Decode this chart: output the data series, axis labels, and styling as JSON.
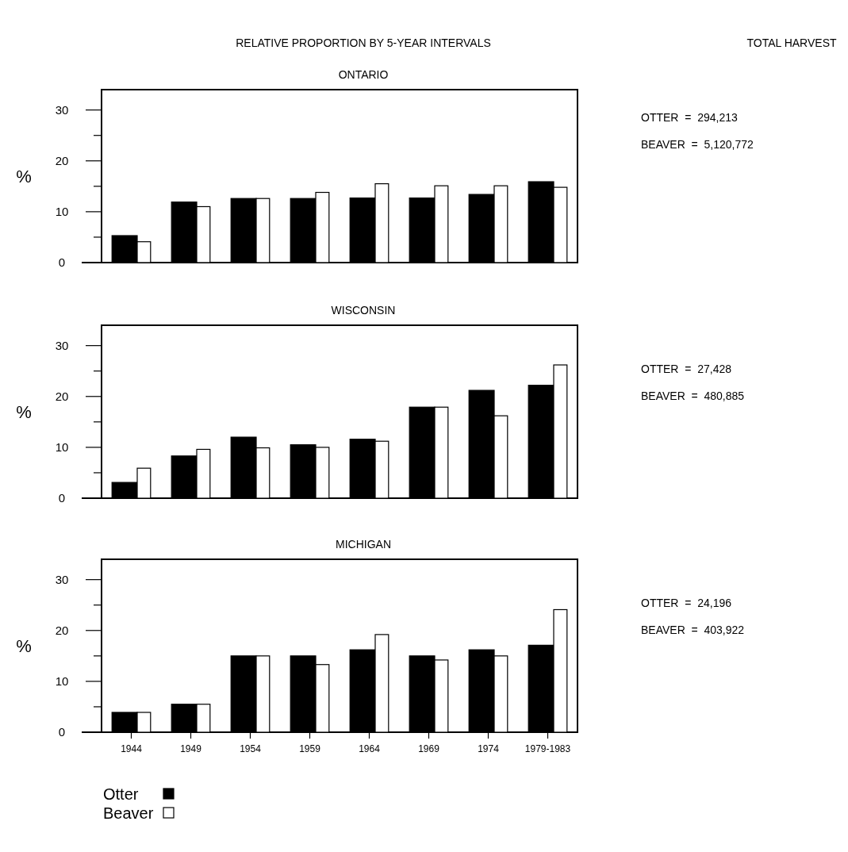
{
  "chart_data": [
    {
      "type": "bar",
      "title": "ONTARIO",
      "ylabel": "%",
      "categories": [
        null,
        null,
        null,
        null,
        null,
        null,
        null,
        null
      ],
      "series": [
        {
          "color": "#000000",
          "values": [
            5.3,
            11.9,
            12.6,
            12.6,
            12.7,
            12.7,
            13.4,
            15.9
          ]
        },
        {
          "color": "#ffffff",
          "values": [
            4.1,
            11.0,
            12.6,
            13.8,
            15.5,
            15.1,
            15.1,
            14.8
          ]
        }
      ],
      "ylim": [
        0,
        34
      ],
      "yticks": [
        0,
        {
          "value": 5,
          "label": null
        },
        10,
        {
          "value": 15,
          "label": null
        },
        20,
        {
          "value": 25,
          "label": null
        },
        30
      ],
      "tick_labels": "y",
      "legend": false,
      "grid": false,
      "annotations": [
        "RELATIVE PROPORTION BY 5-YEAR INTERVALS",
        "TOTAL HARVEST",
        "OTTER  =  294,213",
        "BEAVER  =  5,120,772"
      ]
    },
    {
      "type": "bar",
      "title": "WISCONSIN",
      "ylabel": "%",
      "categories": [
        null,
        null,
        null,
        null,
        null,
        null,
        null,
        null
      ],
      "series": [
        {
          "color": "#000000",
          "values": [
            3.1,
            8.3,
            12.0,
            10.5,
            11.6,
            17.9,
            21.2,
            22.2
          ]
        },
        {
          "color": "#ffffff",
          "values": [
            5.9,
            9.6,
            9.9,
            10.0,
            11.2,
            17.9,
            16.2,
            26.2
          ]
        }
      ],
      "ylim": [
        0,
        34
      ],
      "yticks": [
        0,
        {
          "value": 5,
          "label": null
        },
        10,
        {
          "value": 15,
          "label": null
        },
        20,
        {
          "value": 25,
          "label": null
        },
        30
      ],
      "tick_labels": "y",
      "legend": false,
      "grid": false,
      "annotations": [
        "OTTER  =  27,428",
        "BEAVER  =  480,885"
      ]
    },
    {
      "type": "bar",
      "title": "MICHIGAN",
      "ylabel": "%",
      "categories": [
        "1944",
        "1949",
        "1954",
        "1959",
        "1964",
        "1969",
        "1974",
        "1979-1983"
      ],
      "series": [
        {
          "name": "Otter",
          "color": "#000000",
          "values": [
            3.9,
            5.5,
            15.0,
            15.0,
            16.2,
            15.0,
            16.2,
            17.1
          ]
        },
        {
          "name": "Beaver",
          "color": "#ffffff",
          "values": [
            3.9,
            5.5,
            15.0,
            13.3,
            19.2,
            14.2,
            15.0,
            24.1
          ]
        }
      ],
      "ylim": [
        0,
        34
      ],
      "yticks": [
        0,
        {
          "value": 5,
          "label": null
        },
        10,
        {
          "value": 15,
          "label": null
        },
        20,
        {
          "value": 25,
          "label": null
        },
        30
      ],
      "legend": "bottom left",
      "grid": false,
      "annotations": [
        "OTTER  =  24,196",
        "BEAVER  =  403,922"
      ]
    }
  ]
}
